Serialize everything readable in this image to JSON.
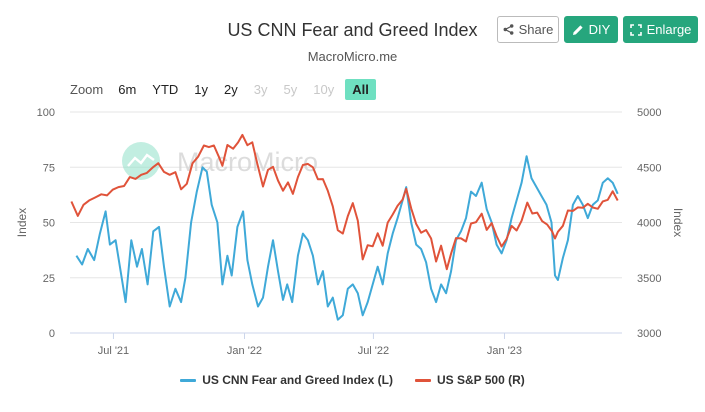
{
  "header": {
    "title": "US CNN Fear and Greed Index",
    "subtitle": "MacroMicro.me",
    "share_label": "Share",
    "diy_label": "DIY",
    "enlarge_label": "Enlarge"
  },
  "zoom": {
    "label": "Zoom",
    "options": [
      {
        "label": "6m",
        "state": "normal"
      },
      {
        "label": "YTD",
        "state": "normal"
      },
      {
        "label": "1y",
        "state": "normal"
      },
      {
        "label": "2y",
        "state": "normal"
      },
      {
        "label": "3y",
        "state": "disabled"
      },
      {
        "label": "5y",
        "state": "disabled"
      },
      {
        "label": "10y",
        "state": "disabled"
      },
      {
        "label": "All",
        "state": "active"
      }
    ]
  },
  "watermark": "MacroMicro",
  "colors": {
    "fear_greed": "#3fa9d8",
    "sp500": "#e0533a",
    "accent": "#26a67d",
    "grid": "#e6e6e6"
  },
  "chart_data": {
    "type": "line",
    "title": "US CNN Fear and Greed Index",
    "subtitle": "MacroMicro.me",
    "x_range": [
      "2021-05-01",
      "2023-06-15"
    ],
    "x_ticks": [
      {
        "date": "2021-07-01",
        "label": "Jul '21"
      },
      {
        "date": "2022-01-01",
        "label": "Jan '22"
      },
      {
        "date": "2022-07-01",
        "label": "Jul '22"
      },
      {
        "date": "2023-01-01",
        "label": "Jan '23"
      }
    ],
    "y_left": {
      "label": "Index",
      "min": 0,
      "max": 100,
      "ticks": [
        0,
        25,
        50,
        75,
        100
      ]
    },
    "y_right": {
      "label": "Index",
      "min": 3000,
      "max": 5000,
      "ticks": [
        3000,
        3500,
        4000,
        4500,
        5000
      ]
    },
    "grid": true,
    "legend_position": "bottom",
    "series": [
      {
        "name": "US CNN Fear and Greed Index (L)",
        "axis": "left",
        "color": "#3fa9d8",
        "points": [
          [
            "2021-05-10",
            35
          ],
          [
            "2021-05-18",
            31
          ],
          [
            "2021-05-26",
            38
          ],
          [
            "2021-06-04",
            33
          ],
          [
            "2021-06-12",
            45
          ],
          [
            "2021-06-20",
            55
          ],
          [
            "2021-06-26",
            40
          ],
          [
            "2021-07-04",
            42
          ],
          [
            "2021-07-10",
            30
          ],
          [
            "2021-07-18",
            14
          ],
          [
            "2021-07-26",
            42
          ],
          [
            "2021-08-03",
            30
          ],
          [
            "2021-08-10",
            38
          ],
          [
            "2021-08-18",
            22
          ],
          [
            "2021-08-26",
            46
          ],
          [
            "2021-09-03",
            48
          ],
          [
            "2021-09-10",
            30
          ],
          [
            "2021-09-18",
            12
          ],
          [
            "2021-09-26",
            20
          ],
          [
            "2021-10-04",
            14
          ],
          [
            "2021-10-10",
            25
          ],
          [
            "2021-10-18",
            50
          ],
          [
            "2021-10-26",
            64
          ],
          [
            "2021-11-03",
            75
          ],
          [
            "2021-11-09",
            73
          ],
          [
            "2021-11-16",
            58
          ],
          [
            "2021-11-24",
            50
          ],
          [
            "2021-12-01",
            22
          ],
          [
            "2021-12-08",
            35
          ],
          [
            "2021-12-14",
            26
          ],
          [
            "2021-12-22",
            48
          ],
          [
            "2021-12-30",
            55
          ],
          [
            "2022-01-05",
            33
          ],
          [
            "2022-01-12",
            22
          ],
          [
            "2022-01-20",
            12
          ],
          [
            "2022-01-27",
            16
          ],
          [
            "2022-02-03",
            30
          ],
          [
            "2022-02-10",
            42
          ],
          [
            "2022-02-17",
            28
          ],
          [
            "2022-02-24",
            15
          ],
          [
            "2022-03-02",
            22
          ],
          [
            "2022-03-09",
            14
          ],
          [
            "2022-03-17",
            35
          ],
          [
            "2022-03-24",
            45
          ],
          [
            "2022-03-31",
            42
          ],
          [
            "2022-04-07",
            35
          ],
          [
            "2022-04-14",
            22
          ],
          [
            "2022-04-21",
            28
          ],
          [
            "2022-04-28",
            12
          ],
          [
            "2022-05-05",
            16
          ],
          [
            "2022-05-12",
            6
          ],
          [
            "2022-05-19",
            8
          ],
          [
            "2022-05-26",
            20
          ],
          [
            "2022-06-02",
            22
          ],
          [
            "2022-06-09",
            18
          ],
          [
            "2022-06-16",
            8
          ],
          [
            "2022-06-23",
            14
          ],
          [
            "2022-06-30",
            22
          ],
          [
            "2022-07-07",
            30
          ],
          [
            "2022-07-14",
            22
          ],
          [
            "2022-07-21",
            36
          ],
          [
            "2022-07-28",
            45
          ],
          [
            "2022-08-04",
            52
          ],
          [
            "2022-08-11",
            60
          ],
          [
            "2022-08-16",
            66
          ],
          [
            "2022-08-23",
            50
          ],
          [
            "2022-08-30",
            40
          ],
          [
            "2022-09-06",
            38
          ],
          [
            "2022-09-13",
            32
          ],
          [
            "2022-09-20",
            20
          ],
          [
            "2022-09-27",
            14
          ],
          [
            "2022-10-04",
            22
          ],
          [
            "2022-10-11",
            18
          ],
          [
            "2022-10-18",
            28
          ],
          [
            "2022-10-25",
            42
          ],
          [
            "2022-11-01",
            46
          ],
          [
            "2022-11-08",
            52
          ],
          [
            "2022-11-15",
            64
          ],
          [
            "2022-11-22",
            62
          ],
          [
            "2022-11-30",
            68
          ],
          [
            "2022-12-07",
            56
          ],
          [
            "2022-12-14",
            50
          ],
          [
            "2022-12-21",
            40
          ],
          [
            "2022-12-28",
            36
          ],
          [
            "2023-01-04",
            42
          ],
          [
            "2023-01-11",
            52
          ],
          [
            "2023-01-18",
            60
          ],
          [
            "2023-01-25",
            68
          ],
          [
            "2023-02-01",
            80
          ],
          [
            "2023-02-08",
            70
          ],
          [
            "2023-02-15",
            66
          ],
          [
            "2023-02-22",
            62
          ],
          [
            "2023-03-01",
            58
          ],
          [
            "2023-03-08",
            50
          ],
          [
            "2023-03-13",
            26
          ],
          [
            "2023-03-17",
            24
          ],
          [
            "2023-03-24",
            34
          ],
          [
            "2023-03-31",
            42
          ],
          [
            "2023-04-07",
            58
          ],
          [
            "2023-04-14",
            62
          ],
          [
            "2023-04-21",
            58
          ],
          [
            "2023-04-28",
            52
          ],
          [
            "2023-05-05",
            58
          ],
          [
            "2023-05-12",
            60
          ],
          [
            "2023-05-19",
            68
          ],
          [
            "2023-05-26",
            70
          ],
          [
            "2023-06-02",
            68
          ],
          [
            "2023-06-09",
            63
          ]
        ]
      },
      {
        "name": "US S&P 500 (R)",
        "axis": "right",
        "color": "#e0533a",
        "points": [
          [
            "2021-05-03",
            4190
          ],
          [
            "2021-05-12",
            4060
          ],
          [
            "2021-05-20",
            4160
          ],
          [
            "2021-05-28",
            4200
          ],
          [
            "2021-06-05",
            4225
          ],
          [
            "2021-06-14",
            4255
          ],
          [
            "2021-06-22",
            4245
          ],
          [
            "2021-06-30",
            4297
          ],
          [
            "2021-07-08",
            4320
          ],
          [
            "2021-07-16",
            4330
          ],
          [
            "2021-07-24",
            4411
          ],
          [
            "2021-08-01",
            4395
          ],
          [
            "2021-08-09",
            4432
          ],
          [
            "2021-08-17",
            4449
          ],
          [
            "2021-08-25",
            4497
          ],
          [
            "2021-09-02",
            4537
          ],
          [
            "2021-09-10",
            4458
          ],
          [
            "2021-09-18",
            4432
          ],
          [
            "2021-09-26",
            4455
          ],
          [
            "2021-10-04",
            4300
          ],
          [
            "2021-10-12",
            4350
          ],
          [
            "2021-10-20",
            4536
          ],
          [
            "2021-10-28",
            4596
          ],
          [
            "2021-11-05",
            4697
          ],
          [
            "2021-11-12",
            4682
          ],
          [
            "2021-11-19",
            4697
          ],
          [
            "2021-11-26",
            4594
          ],
          [
            "2021-12-01",
            4513
          ],
          [
            "2021-12-08",
            4701
          ],
          [
            "2021-12-16",
            4668
          ],
          [
            "2021-12-23",
            4725
          ],
          [
            "2021-12-29",
            4793
          ],
          [
            "2022-01-05",
            4700
          ],
          [
            "2022-01-12",
            4726
          ],
          [
            "2022-01-19",
            4532
          ],
          [
            "2022-01-27",
            4326
          ],
          [
            "2022-02-03",
            4477
          ],
          [
            "2022-02-10",
            4504
          ],
          [
            "2022-02-17",
            4380
          ],
          [
            "2022-02-24",
            4288
          ],
          [
            "2022-03-03",
            4363
          ],
          [
            "2022-03-10",
            4259
          ],
          [
            "2022-03-17",
            4411
          ],
          [
            "2022-03-24",
            4520
          ],
          [
            "2022-03-31",
            4530
          ],
          [
            "2022-04-07",
            4500
          ],
          [
            "2022-04-14",
            4392
          ],
          [
            "2022-04-21",
            4393
          ],
          [
            "2022-04-28",
            4287
          ],
          [
            "2022-05-05",
            4146
          ],
          [
            "2022-05-12",
            3930
          ],
          [
            "2022-05-19",
            3900
          ],
          [
            "2022-05-26",
            4058
          ],
          [
            "2022-06-02",
            4176
          ],
          [
            "2022-06-09",
            4017
          ],
          [
            "2022-06-16",
            3666
          ],
          [
            "2022-06-23",
            3795
          ],
          [
            "2022-06-30",
            3785
          ],
          [
            "2022-07-07",
            3902
          ],
          [
            "2022-07-14",
            3790
          ],
          [
            "2022-07-21",
            3999
          ],
          [
            "2022-07-28",
            4072
          ],
          [
            "2022-08-04",
            4151
          ],
          [
            "2022-08-11",
            4207
          ],
          [
            "2022-08-16",
            4305
          ],
          [
            "2022-08-23",
            4128
          ],
          [
            "2022-08-30",
            3986
          ],
          [
            "2022-09-06",
            3908
          ],
          [
            "2022-09-13",
            3932
          ],
          [
            "2022-09-20",
            3855
          ],
          [
            "2022-09-27",
            3647
          ],
          [
            "2022-10-04",
            3790
          ],
          [
            "2022-10-12",
            3577
          ],
          [
            "2022-10-18",
            3719
          ],
          [
            "2022-10-25",
            3859
          ],
          [
            "2022-11-01",
            3856
          ],
          [
            "2022-11-08",
            3828
          ],
          [
            "2022-11-15",
            3991
          ],
          [
            "2022-11-22",
            4003
          ],
          [
            "2022-11-30",
            4080
          ],
          [
            "2022-12-07",
            3933
          ],
          [
            "2022-12-14",
            3995
          ],
          [
            "2022-12-21",
            3878
          ],
          [
            "2022-12-28",
            3783
          ],
          [
            "2023-01-04",
            3852
          ],
          [
            "2023-01-11",
            3969
          ],
          [
            "2023-01-18",
            3928
          ],
          [
            "2023-01-25",
            4016
          ],
          [
            "2023-02-02",
            4180
          ],
          [
            "2023-02-09",
            4081
          ],
          [
            "2023-02-16",
            4090
          ],
          [
            "2023-02-23",
            4012
          ],
          [
            "2023-03-02",
            3981
          ],
          [
            "2023-03-09",
            3918
          ],
          [
            "2023-03-13",
            3855
          ],
          [
            "2023-03-17",
            3916
          ],
          [
            "2023-03-24",
            3970
          ],
          [
            "2023-03-31",
            4109
          ],
          [
            "2023-04-07",
            4105
          ],
          [
            "2023-04-14",
            4137
          ],
          [
            "2023-04-21",
            4133
          ],
          [
            "2023-04-28",
            4169
          ],
          [
            "2023-05-05",
            4136
          ],
          [
            "2023-05-12",
            4124
          ],
          [
            "2023-05-19",
            4191
          ],
          [
            "2023-05-26",
            4205
          ],
          [
            "2023-06-02",
            4282
          ],
          [
            "2023-06-09",
            4199
          ]
        ]
      }
    ]
  }
}
